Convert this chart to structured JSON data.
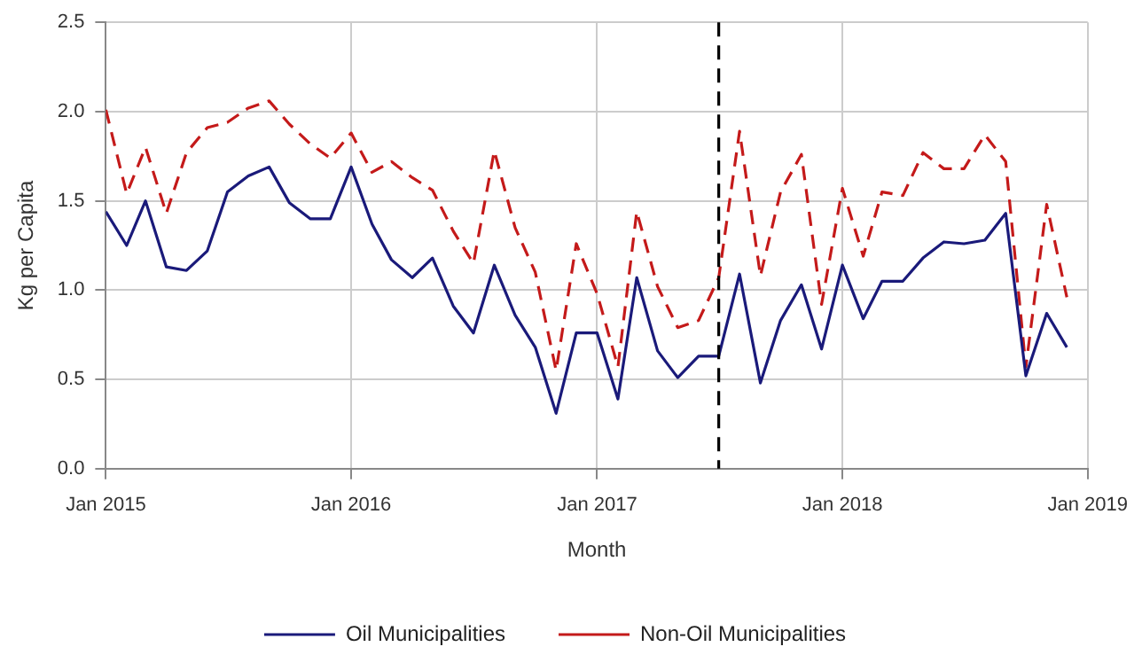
{
  "chart_data": {
    "type": "line",
    "xlabel": "Month",
    "ylabel": "Kg per Capita",
    "x": [
      "2015-01",
      "2015-02",
      "2015-03",
      "2015-04",
      "2015-05",
      "2015-06",
      "2015-07",
      "2015-08",
      "2015-09",
      "2015-10",
      "2015-11",
      "2015-12",
      "2016-01",
      "2016-02",
      "2016-03",
      "2016-04",
      "2016-05",
      "2016-06",
      "2016-07",
      "2016-08",
      "2016-09",
      "2016-10",
      "2016-11",
      "2016-12",
      "2017-01",
      "2017-02",
      "2017-03",
      "2017-04",
      "2017-05",
      "2017-06",
      "2017-07",
      "2017-08",
      "2017-09",
      "2017-10",
      "2017-11",
      "2017-12",
      "2018-01",
      "2018-02",
      "2018-03",
      "2018-04",
      "2018-05",
      "2018-06",
      "2018-07",
      "2018-08",
      "2018-09",
      "2018-10",
      "2018-11",
      "2018-12"
    ],
    "series": [
      {
        "name": "Oil Municipalities",
        "color": "#1a1a7a",
        "line_style": "solid",
        "values": [
          1.44,
          1.25,
          1.5,
          1.13,
          1.11,
          1.22,
          1.55,
          1.64,
          1.69,
          1.49,
          1.4,
          1.4,
          1.69,
          1.37,
          1.17,
          1.07,
          1.18,
          0.91,
          0.76,
          1.14,
          0.86,
          0.68,
          0.31,
          0.76,
          0.76,
          0.39,
          1.07,
          0.66,
          0.51,
          0.63,
          0.63,
          1.09,
          0.48,
          0.83,
          1.03,
          0.67,
          1.14,
          0.84,
          1.05,
          1.05,
          1.18,
          1.27,
          1.26,
          1.28,
          1.43,
          0.52,
          0.87,
          0.68
        ]
      },
      {
        "name": "Non-Oil Municipalities",
        "color": "#c41a1a",
        "line_style": "dashed",
        "values": [
          2.01,
          1.54,
          1.8,
          1.43,
          1.77,
          1.91,
          1.94,
          2.02,
          2.06,
          1.93,
          1.82,
          1.74,
          1.88,
          1.66,
          1.72,
          1.63,
          1.56,
          1.33,
          1.15,
          1.78,
          1.35,
          1.1,
          0.55,
          1.26,
          0.98,
          0.57,
          1.44,
          1.02,
          0.79,
          0.83,
          1.07,
          1.89,
          1.08,
          1.55,
          1.76,
          0.92,
          1.57,
          1.19,
          1.55,
          1.53,
          1.77,
          1.68,
          1.68,
          1.87,
          1.72,
          0.57,
          1.48,
          0.96
        ]
      }
    ],
    "xlim": [
      "2015-01",
      "2019-01"
    ],
    "xticks": [
      {
        "value": "2015-01",
        "label": "Jan 2015"
      },
      {
        "value": "2016-01",
        "label": "Jan 2016"
      },
      {
        "value": "2017-01",
        "label": "Jan 2017"
      },
      {
        "value": "2018-01",
        "label": "Jan 2018"
      },
      {
        "value": "2019-01",
        "label": "Jan 2019"
      }
    ],
    "ylim": [
      0,
      2.5
    ],
    "yticks": [
      {
        "value": 0,
        "label": "0.0"
      },
      {
        "value": 0.5,
        "label": "0.5"
      },
      {
        "value": 1,
        "label": "1.0"
      },
      {
        "value": 1.5,
        "label": "1.5"
      },
      {
        "value": 2,
        "label": "2.0"
      },
      {
        "value": 2.5,
        "label": "2.5"
      }
    ],
    "ref_lines": [
      {
        "axis": "x",
        "value": "2017-07",
        "color": "#000000",
        "line_style": "dashed"
      }
    ],
    "grid": true,
    "legend": "bottom",
    "marker": "none"
  }
}
